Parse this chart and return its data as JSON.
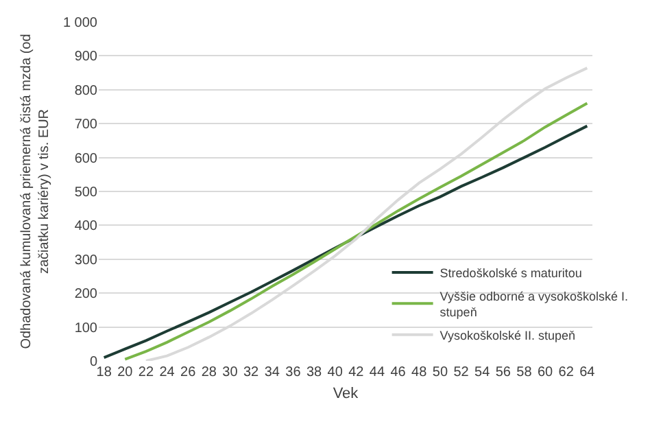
{
  "chart_data": {
    "type": "line",
    "xlabel": "Vek",
    "ylabel": "Odhadovaná kumulovaná priemerná čistá mzda (od začiatku kariéry) v tis. EUR",
    "x": [
      18,
      20,
      22,
      24,
      26,
      28,
      30,
      32,
      34,
      36,
      38,
      40,
      42,
      44,
      46,
      48,
      50,
      52,
      54,
      56,
      58,
      60,
      62,
      64
    ],
    "series": [
      {
        "name": "Stredoškolské s maturitou",
        "color": "#1d3c34",
        "values": [
          10,
          35,
          60,
          88,
          115,
          143,
          173,
          203,
          235,
          267,
          300,
          333,
          365,
          397,
          428,
          458,
          484,
          515,
          542,
          570,
          600,
          630,
          662,
          693
        ]
      },
      {
        "name": "Vyššie odborné a vysokoškolské I. stupeň",
        "color": "#7ab648",
        "values": [
          null,
          5,
          28,
          55,
          85,
          115,
          148,
          183,
          220,
          255,
          292,
          330,
          368,
          405,
          443,
          478,
          512,
          545,
          580,
          615,
          650,
          690,
          725,
          760
        ]
      },
      {
        "name": "Vysokoškolské II. stupeň",
        "color": "#d9d9d9",
        "values": [
          null,
          null,
          0,
          15,
          40,
          70,
          103,
          140,
          180,
          222,
          265,
          310,
          360,
          420,
          475,
          525,
          566,
          610,
          660,
          712,
          760,
          803,
          835,
          864
        ]
      }
    ],
    "xlim": [
      17.5,
      64.5
    ],
    "xticks": [
      18,
      20,
      22,
      24,
      26,
      28,
      30,
      32,
      34,
      36,
      38,
      40,
      42,
      44,
      46,
      48,
      50,
      52,
      54,
      56,
      58,
      60,
      62,
      64
    ],
    "ylim": [
      0,
      1000
    ],
    "yticks": [
      0,
      100,
      200,
      300,
      400,
      500,
      600,
      700,
      800,
      900,
      {
        "value": 1000,
        "label": "1 000"
      }
    ],
    "grid": "y",
    "legend": "bottom right",
    "marker": "none",
    "line_style": "solid"
  }
}
